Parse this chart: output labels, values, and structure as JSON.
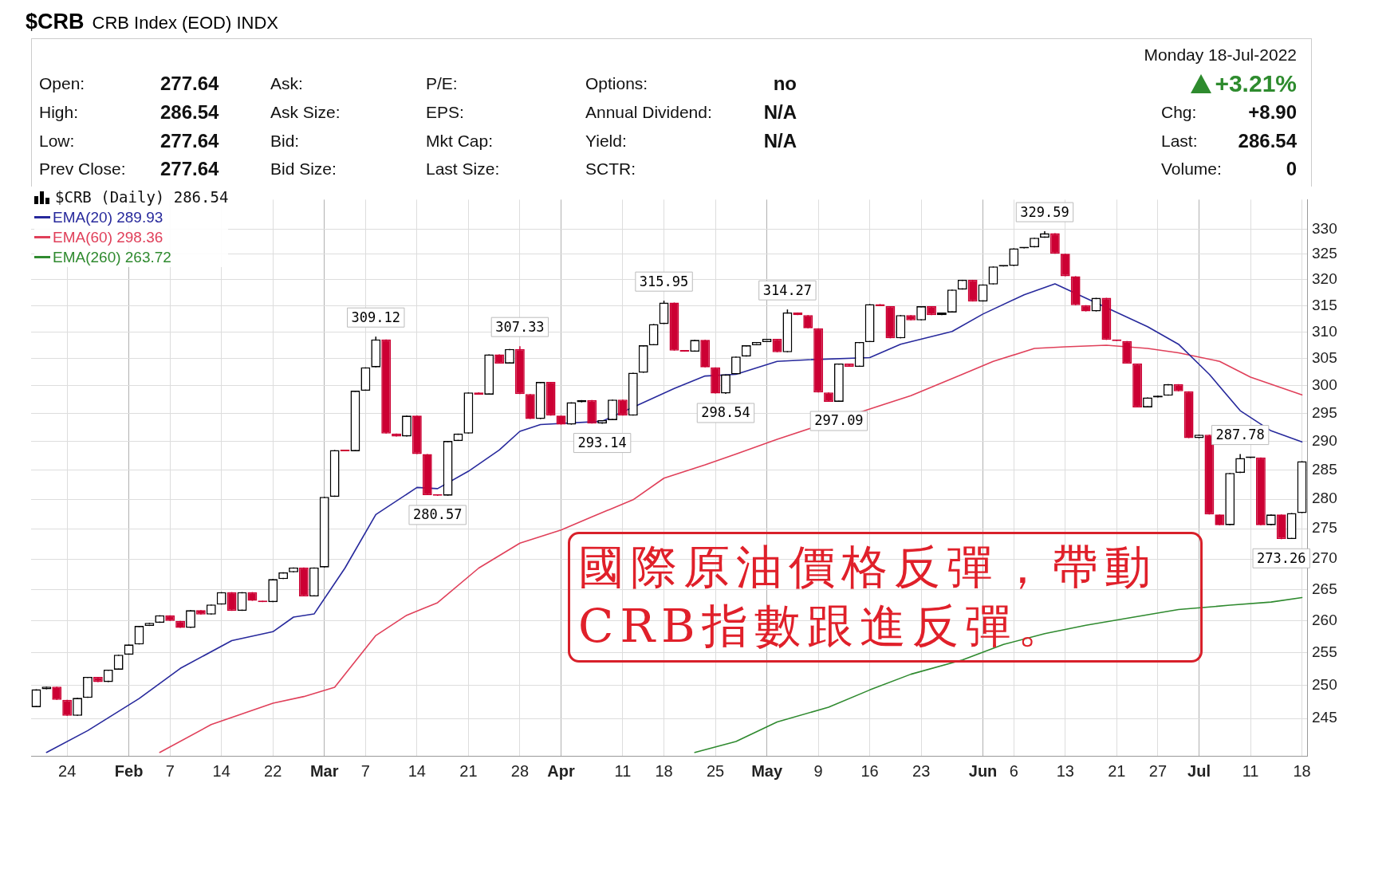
{
  "chart_data": {
    "type": "candlestick",
    "title": "$CRB",
    "subtitle": "CRB Index (EOD)  INDX",
    "categories": [
      null,
      null,
      null,
      "24",
      null,
      null,
      null,
      null,
      null,
      "Feb",
      null,
      null,
      null,
      "7",
      null,
      null,
      null,
      null,
      "14",
      null,
      null,
      null,
      null,
      "22",
      null,
      null,
      null,
      null,
      "Mar",
      null,
      null,
      null,
      "7",
      null,
      null,
      null,
      null,
      "14",
      null,
      null,
      null,
      null,
      "21",
      null,
      null,
      null,
      null,
      "28",
      null,
      null,
      null,
      "Apr",
      null,
      null,
      null,
      null,
      null,
      "11",
      null,
      null,
      null,
      "18",
      null,
      null,
      null,
      null,
      "25",
      null,
      null,
      null,
      null,
      "May",
      null,
      null,
      null,
      null,
      "9",
      null,
      null,
      null,
      null,
      "16",
      null,
      null,
      null,
      null,
      "23",
      null,
      null,
      null,
      null,
      null,
      "Jun",
      null,
      null,
      "6",
      null,
      null,
      null,
      null,
      "13",
      null,
      null,
      null,
      null,
      "21",
      null,
      null,
      null,
      "27",
      null,
      null,
      null,
      "Jul",
      null,
      null,
      null,
      null,
      "11",
      null,
      null,
      null,
      null,
      "18"
    ],
    "series": [
      {
        "name": "$CRB (Daily) 286.54",
        "colors": [
          "#000000",
          "#000000",
          "#cc0033",
          "#cc0033",
          "#000000",
          "#000000",
          "#cc0033",
          "#000000",
          "#000000",
          "#000000",
          "#000000",
          "#000000",
          "#000000",
          "#cc0033",
          "#cc0033",
          "#000000",
          "#cc0033",
          "#000000",
          "#000000",
          "#cc0033",
          "#000000",
          "#cc0033",
          "#cc0033",
          "#000000",
          "#000000",
          "#000000",
          "#cc0033",
          "#000000",
          "#000000",
          "#000000",
          "#cc0033",
          "#000000",
          "#000000",
          "#000000",
          "#cc0033",
          "#cc0033",
          "#000000",
          "#cc0033",
          "#cc0033",
          "#cc0033",
          "#000000",
          "#000000",
          "#000000",
          "#cc0033",
          "#000000",
          "#cc0033",
          "#000000",
          "#cc0033",
          "#cc0033",
          "#000000",
          "#cc0033",
          "#cc0033",
          "#000000",
          "#000000",
          "#cc0033",
          "#000000",
          "#000000",
          "#cc0033",
          "#000000",
          "#000000",
          "#000000",
          "#000000",
          "#cc0033",
          "#cc0033",
          "#000000",
          "#cc0033",
          "#cc0033",
          "#000000",
          "#000000",
          "#000000",
          "#000000",
          "#000000",
          "#cc0033",
          "#000000",
          "#cc0033",
          "#cc0033",
          "#cc0033",
          "#cc0033",
          "#000000",
          "#cc0033",
          "#000000",
          "#000000",
          "#cc0033",
          "#cc0033",
          "#000000",
          "#cc0033",
          "#000000",
          "#cc0033",
          "#000000",
          "#000000",
          "#000000",
          "#cc0033",
          "#000000",
          "#000000",
          "#000000",
          "#000000",
          "#000000",
          "#000000",
          "#000000",
          "#cc0033",
          "#cc0033",
          "#cc0033",
          "#cc0033",
          "#000000",
          "#cc0033",
          "#cc0033",
          "#cc0033",
          "#cc0033",
          "#000000",
          "#000000",
          "#000000",
          "#cc0033",
          "#cc0033",
          "#000000",
          "#cc0033",
          "#cc0033",
          "#000000",
          "#000000",
          "#000000",
          "#cc0033",
          "#000000",
          "#cc0033",
          "#000000",
          "#000000"
        ],
        "ohlc": [
          [
            246.7,
            249.4,
            246.7,
            249.4
          ],
          [
            249.4,
            249.8,
            249.4,
            249.8
          ],
          [
            249.8,
            249.8,
            247.8,
            247.8
          ],
          [
            247.8,
            247.8,
            245.4,
            245.4
          ],
          [
            245.4,
            248.1,
            245.4,
            248.1
          ],
          [
            248.1,
            251.3,
            248.1,
            251.3
          ],
          [
            251.3,
            251.3,
            250.5,
            250.5
          ],
          [
            250.5,
            252.4,
            250.5,
            252.4
          ],
          [
            252.4,
            254.7,
            252.4,
            254.7
          ],
          [
            254.7,
            256.3,
            254.7,
            256.3
          ],
          [
            256.3,
            259.2,
            256.3,
            259.2
          ],
          [
            259.2,
            259.7,
            259.2,
            259.7
          ],
          [
            259.7,
            260.9,
            259.7,
            260.9
          ],
          [
            260.9,
            260.9,
            260.0,
            260.0
          ],
          [
            260.0,
            260.0,
            258.9,
            258.9
          ],
          [
            258.9,
            261.7,
            258.9,
            261.7
          ],
          [
            261.7,
            261.7,
            261.0,
            261.0
          ],
          [
            261.0,
            262.6,
            261.0,
            262.6
          ],
          [
            262.6,
            264.6,
            262.6,
            264.6
          ],
          [
            264.6,
            264.6,
            261.6,
            261.6
          ],
          [
            261.6,
            264.6,
            261.6,
            264.6
          ],
          [
            264.6,
            264.6,
            263.2,
            263.2
          ],
          [
            263.2,
            263.2,
            263.0,
            263.0
          ],
          [
            263.0,
            266.7,
            263.0,
            266.7
          ],
          [
            266.7,
            267.8,
            266.7,
            267.8
          ],
          [
            267.8,
            268.6,
            267.8,
            268.6
          ],
          [
            268.6,
            268.6,
            263.9,
            263.9
          ],
          [
            263.9,
            268.6,
            263.9,
            268.6
          ],
          [
            268.6,
            280.4,
            268.6,
            280.4
          ],
          [
            280.4,
            288.5,
            280.4,
            288.5
          ],
          [
            288.5,
            288.5,
            288.3,
            288.3
          ],
          [
            288.3,
            299.1,
            288.3,
            299.1
          ],
          [
            299.1,
            303.4,
            299.1,
            303.4
          ],
          [
            303.4,
            309.12,
            303.4,
            308.6
          ],
          [
            308.6,
            308.6,
            291.4,
            291.4
          ],
          [
            291.4,
            291.4,
            290.9,
            290.9
          ],
          [
            290.9,
            294.6,
            290.9,
            294.6
          ],
          [
            294.6,
            294.6,
            287.8,
            287.8
          ],
          [
            287.8,
            287.8,
            280.7,
            280.7
          ],
          [
            280.7,
            280.7,
            280.57,
            280.6
          ],
          [
            280.6,
            290.1,
            280.6,
            290.1
          ],
          [
            290.1,
            291.4,
            290.1,
            291.4
          ],
          [
            291.4,
            298.8,
            291.4,
            298.8
          ],
          [
            298.8,
            298.8,
            298.4,
            298.4
          ],
          [
            298.4,
            305.8,
            298.4,
            305.8
          ],
          [
            305.8,
            305.8,
            304.1,
            304.1
          ],
          [
            304.1,
            306.8,
            304.1,
            306.8
          ],
          [
            306.8,
            307.33,
            298.5,
            298.5
          ],
          [
            298.5,
            298.5,
            294.0,
            294.0
          ],
          [
            294.0,
            300.7,
            294.0,
            300.7
          ],
          [
            300.7,
            300.7,
            294.6,
            294.6
          ],
          [
            294.6,
            294.6,
            293.0,
            293.0
          ],
          [
            293.0,
            297.0,
            293.0,
            297.0
          ],
          [
            297.0,
            297.4,
            297.0,
            297.4
          ],
          [
            297.4,
            297.4,
            293.2,
            293.2
          ],
          [
            293.2,
            293.8,
            293.14,
            293.8
          ],
          [
            293.8,
            297.5,
            293.8,
            297.5
          ],
          [
            297.5,
            297.5,
            294.6,
            294.6
          ],
          [
            294.6,
            302.4,
            294.6,
            302.4
          ],
          [
            302.4,
            307.5,
            302.4,
            307.5
          ],
          [
            307.5,
            311.5,
            307.5,
            311.5
          ],
          [
            311.5,
            315.95,
            311.5,
            315.6
          ],
          [
            315.6,
            315.6,
            306.5,
            306.5
          ],
          [
            306.5,
            306.5,
            306.3,
            306.3
          ],
          [
            306.3,
            308.5,
            306.3,
            308.5
          ],
          [
            308.5,
            308.5,
            303.4,
            303.4
          ],
          [
            303.4,
            303.4,
            298.6,
            298.6
          ],
          [
            298.6,
            302.1,
            298.54,
            302.1
          ],
          [
            302.1,
            305.4,
            302.1,
            305.4
          ],
          [
            305.4,
            307.5,
            305.4,
            307.5
          ],
          [
            307.5,
            308.1,
            307.5,
            308.1
          ],
          [
            308.1,
            308.7,
            308.1,
            308.7
          ],
          [
            308.7,
            308.7,
            306.2,
            306.2
          ],
          [
            306.2,
            314.27,
            306.2,
            313.7
          ],
          [
            313.7,
            313.7,
            313.2,
            313.2
          ],
          [
            313.2,
            313.2,
            310.7,
            310.7
          ],
          [
            310.7,
            310.7,
            298.8,
            298.8
          ],
          [
            298.8,
            298.8,
            297.1,
            297.1
          ],
          [
            297.1,
            304.1,
            297.09,
            304.1
          ],
          [
            304.1,
            304.1,
            303.5,
            303.5
          ],
          [
            303.5,
            308.1,
            303.5,
            308.1
          ],
          [
            308.1,
            315.3,
            308.1,
            315.3
          ],
          [
            315.3,
            315.3,
            314.9,
            314.9
          ],
          [
            314.9,
            314.9,
            308.8,
            308.8
          ],
          [
            308.8,
            313.2,
            308.8,
            313.2
          ],
          [
            313.2,
            313.2,
            312.2,
            312.2
          ],
          [
            312.2,
            314.9,
            312.2,
            314.9
          ],
          [
            314.9,
            314.9,
            313.2,
            313.2
          ],
          [
            313.2,
            313.7,
            313.2,
            313.7
          ],
          [
            313.7,
            318.1,
            313.7,
            318.1
          ],
          [
            318.1,
            320.0,
            318.1,
            320.0
          ],
          [
            320.0,
            320.0,
            315.8,
            315.8
          ],
          [
            315.8,
            319.1,
            315.8,
            319.1
          ],
          [
            319.1,
            322.6,
            319.1,
            322.6
          ],
          [
            322.6,
            322.7,
            322.6,
            322.7
          ],
          [
            322.7,
            326.2,
            322.7,
            326.2
          ],
          [
            326.2,
            326.4,
            326.2,
            326.4
          ],
          [
            326.4,
            328.3,
            326.4,
            328.3
          ],
          [
            328.3,
            329.59,
            328.3,
            329.2
          ],
          [
            329.2,
            329.2,
            325.1,
            325.1
          ],
          [
            325.1,
            325.1,
            320.7,
            320.7
          ],
          [
            320.7,
            320.7,
            315.1,
            315.1
          ],
          [
            315.1,
            315.1,
            313.9,
            313.9
          ],
          [
            313.9,
            316.5,
            313.9,
            316.5
          ],
          [
            316.5,
            316.5,
            308.5,
            308.5
          ],
          [
            308.5,
            308.5,
            308.3,
            308.3
          ],
          [
            308.3,
            308.3,
            304.1,
            304.1
          ],
          [
            304.1,
            304.1,
            296.1,
            296.1
          ],
          [
            296.1,
            297.9,
            296.1,
            297.9
          ],
          [
            297.9,
            298.2,
            297.9,
            298.2
          ],
          [
            298.2,
            300.3,
            298.2,
            300.3
          ],
          [
            300.3,
            300.3,
            299.0,
            299.0
          ],
          [
            299.0,
            299.0,
            290.6,
            290.6
          ],
          [
            290.6,
            291.2,
            290.6,
            291.2
          ],
          [
            291.2,
            291.2,
            277.4,
            277.4
          ],
          [
            277.4,
            277.4,
            275.6,
            275.6
          ],
          [
            275.6,
            284.5,
            275.6,
            284.5
          ],
          [
            284.5,
            287.78,
            284.5,
            287.1
          ],
          [
            287.1,
            287.2,
            287.1,
            287.2
          ],
          [
            287.2,
            287.2,
            275.6,
            275.6
          ],
          [
            275.6,
            277.4,
            275.6,
            277.4
          ],
          [
            277.4,
            277.4,
            273.26,
            273.3
          ],
          [
            273.3,
            277.64,
            273.3,
            277.64
          ],
          [
            277.64,
            286.54,
            277.64,
            286.54
          ]
        ]
      },
      {
        "type": "line",
        "name": "EMA(20) 289.93",
        "color": "#27299c",
        "values": [
          null,
          240.0,
          null,
          null,
          null,
          243.2,
          null,
          null,
          null,
          null,
          248.0,
          null,
          null,
          null,
          252.6,
          null,
          null,
          null,
          null,
          256.9,
          null,
          null,
          null,
          258.3,
          null,
          260.6,
          null,
          261.1,
          null,
          null,
          268.5,
          null,
          null,
          277.4,
          null,
          null,
          null,
          282.0,
          null,
          281.8,
          null,
          null,
          284.8,
          null,
          null,
          288.5,
          null,
          291.8,
          null,
          293.0,
          null,
          null,
          null,
          null,
          null,
          293.6,
          null,
          null,
          null,
          null,
          null,
          null,
          299.5,
          null,
          null,
          301.8,
          null,
          null,
          302.1,
          null,
          null,
          null,
          304.5,
          null,
          null,
          304.8,
          null,
          null,
          null,
          null,
          null,
          305.2,
          null,
          null,
          307.7,
          null,
          null,
          null,
          null,
          310.1,
          null,
          null,
          313.4,
          null,
          null,
          null,
          317.1,
          null,
          null,
          319.2,
          null,
          null,
          null,
          null,
          null,
          null,
          null,
          null,
          311.0,
          null,
          null,
          307.7,
          null,
          null,
          302.1,
          null,
          null,
          295.5,
          null,
          null,
          291.9,
          null,
          null,
          289.93
        ]
      },
      {
        "type": "line",
        "name": "EMA(60) 298.36",
        "color": "#e0405a",
        "values": [
          null,
          null,
          null,
          null,
          null,
          null,
          null,
          null,
          null,
          null,
          null,
          null,
          240.0,
          null,
          null,
          null,
          null,
          244.1,
          null,
          null,
          null,
          null,
          null,
          247.3,
          null,
          null,
          248.3,
          null,
          null,
          249.7,
          null,
          null,
          null,
          257.7,
          null,
          null,
          260.9,
          null,
          null,
          262.9,
          null,
          null,
          null,
          268.5,
          null,
          null,
          null,
          272.6,
          null,
          null,
          null,
          274.8,
          null,
          null,
          277.0,
          null,
          null,
          null,
          279.9,
          null,
          null,
          283.6,
          null,
          null,
          null,
          285.9,
          null,
          null,
          287.8,
          null,
          null,
          null,
          290.4,
          null,
          null,
          null,
          null,
          null,
          null,
          null,
          null,
          295.8,
          null,
          null,
          null,
          298.2,
          null,
          null,
          null,
          null,
          302.1,
          null,
          null,
          304.5,
          null,
          null,
          null,
          306.9,
          null,
          null,
          307.2,
          null,
          null,
          null,
          307.5,
          null,
          null,
          null,
          306.9,
          null,
          null,
          306.1,
          null,
          null,
          null,
          304.5,
          null,
          null,
          301.6,
          null,
          null,
          null,
          null,
          298.36
        ]
      },
      {
        "type": "line",
        "name": "EMA(260) 263.72",
        "color": "#2f8a2f",
        "values": [
          null,
          null,
          null,
          null,
          null,
          null,
          null,
          null,
          null,
          null,
          null,
          null,
          null,
          null,
          null,
          null,
          null,
          null,
          null,
          null,
          null,
          null,
          null,
          null,
          null,
          null,
          null,
          null,
          null,
          null,
          null,
          null,
          null,
          null,
          null,
          null,
          null,
          null,
          null,
          null,
          null,
          null,
          null,
          null,
          null,
          null,
          null,
          null,
          null,
          null,
          null,
          null,
          null,
          null,
          null,
          null,
          null,
          null,
          null,
          null,
          null,
          null,
          null,
          null,
          240.0,
          null,
          null,
          null,
          241.6,
          null,
          null,
          null,
          244.5,
          null,
          null,
          null,
          null,
          246.7,
          null,
          null,
          null,
          249.3,
          null,
          null,
          null,
          251.7,
          null,
          null,
          null,
          null,
          253.9,
          null,
          null,
          null,
          256.3,
          null,
          null,
          null,
          258.0,
          null,
          null,
          null,
          259.3,
          null,
          null,
          null,
          null,
          260.7,
          null,
          null,
          null,
          261.8,
          null,
          null,
          null,
          null,
          262.5,
          null,
          null,
          null,
          263.0,
          null,
          null,
          263.72
        ]
      }
    ],
    "ylim": [
      239.5,
      336
    ],
    "yticks": [
      245,
      250,
      255,
      260,
      265,
      270,
      275,
      280,
      285,
      290,
      295,
      300,
      305,
      310,
      315,
      320,
      325,
      330
    ],
    "log": true,
    "grid": true,
    "legend": "top left",
    "annotations": [
      "Open:",
      "High:",
      "Low:",
      "Prev Close:",
      "277.64",
      "286.54",
      "277.64",
      "277.64",
      "Ask:",
      "Ask Size:",
      "Bid:",
      "Bid Size:",
      "P/E:",
      "EPS:",
      "Mkt Cap:",
      "Last Size:",
      "Options:",
      "Annual Dividend:",
      "Yield:",
      "SCTR:",
      "no",
      "N/A",
      "N/A",
      "Monday  18-Jul-2022",
      "+3.21%",
      "Chg:",
      "+8.90",
      "Last:",
      "286.54",
      "Volume:",
      "0",
      {
        "text": "309.12",
        "y": 309.12
      },
      {
        "text": "280.57",
        "y": 280.57
      },
      {
        "text": "307.33",
        "y": 307.33
      },
      {
        "text": "293.14",
        "y": 293.14
      },
      {
        "text": "315.95",
        "y": 315.95
      },
      {
        "text": "298.54",
        "y": 298.54
      },
      {
        "text": "314.27",
        "y": 314.27
      },
      {
        "text": "297.09",
        "y": 297.09
      },
      {
        "text": "329.59",
        "y": 329.59
      },
      {
        "text": "287.78",
        "y": 287.78
      },
      {
        "text": "273.26",
        "y": 273.26
      },
      "國際原油價格反彈，帶動CRB指數跟進反彈。"
    ]
  }
}
